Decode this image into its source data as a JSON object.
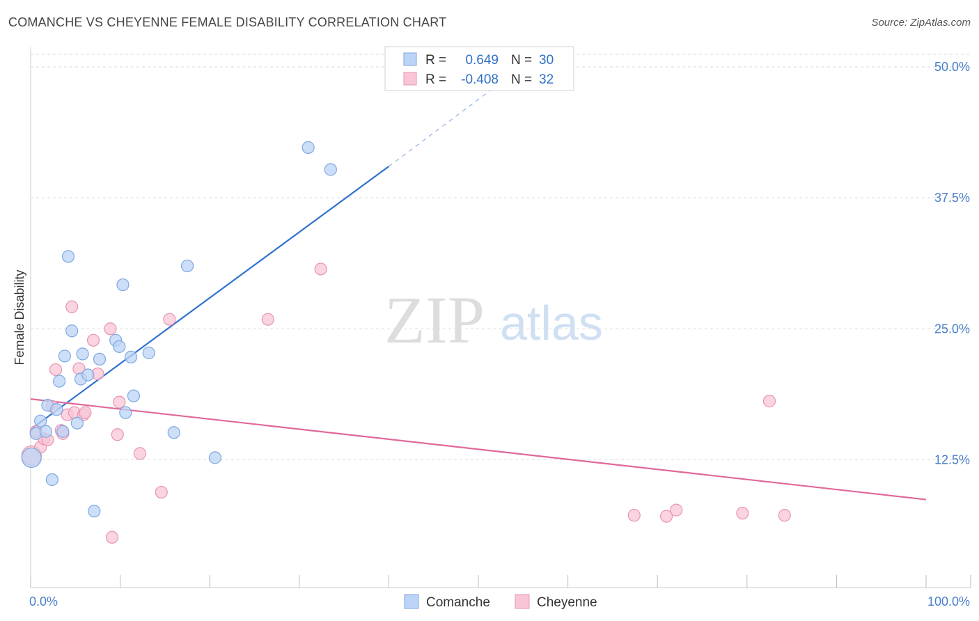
{
  "header": {
    "title": "COMANCHE VS CHEYENNE FEMALE DISABILITY CORRELATION CHART",
    "source": "Source: ZipAtlas.com"
  },
  "watermark": {
    "zip": "ZIP",
    "atlas": "atlas"
  },
  "colors": {
    "comanche_fill": "#bcd4f5",
    "comanche_stroke": "#7ea7e0",
    "comanche_line": "#2f72cf",
    "cheyenne_fill": "#f8c6d6",
    "cheyenne_stroke": "#e894b2",
    "cheyenne_line": "#e06899",
    "text_blue": "#2f6fc8",
    "grid": "#d9d9d9"
  },
  "legend_box": {
    "rows": [
      {
        "r_label": "R =",
        "r_value": "0.649",
        "n_label": "N =",
        "n_value": "30"
      },
      {
        "r_label": "R =",
        "r_value": "-0.408",
        "n_label": "N =",
        "n_value": "32"
      }
    ]
  },
  "chart_data": {
    "type": "scatter",
    "title": "COMANCHE VS CHEYENNE FEMALE DISABILITY CORRELATION CHART",
    "xlabel": "",
    "ylabel": "Female Disability",
    "xlim": [
      0,
      100
    ],
    "ylim": [
      0,
      52
    ],
    "x_tick_labels": [
      {
        "value": 0,
        "label": "0.0%"
      },
      {
        "value": 100,
        "label": "100.0%"
      }
    ],
    "y_ticks": [
      {
        "value": 12.5,
        "label": "12.5%"
      },
      {
        "value": 25.0,
        "label": "25.0%"
      },
      {
        "value": 37.5,
        "label": "37.5%"
      },
      {
        "value": 50.0,
        "label": "50.0%"
      }
    ],
    "x_minor_ticks": [
      0,
      10,
      20,
      30,
      40,
      50,
      60,
      70,
      80,
      90,
      100
    ],
    "legend_position": "bottom-center",
    "series": [
      {
        "name": "Comanche",
        "R": 0.649,
        "N": 30,
        "trend": {
          "x0": 0,
          "y0": 15.4,
          "x1": 40,
          "y1": 40.5,
          "dashed_to_x": 53,
          "dashed_to_y": 48.8
        },
        "points": [
          {
            "x": 0.1,
            "y": 12.7,
            "size": "large"
          },
          {
            "x": 0.6,
            "y": 15.0
          },
          {
            "x": 1.1,
            "y": 16.2
          },
          {
            "x": 1.7,
            "y": 15.2
          },
          {
            "x": 1.9,
            "y": 17.7
          },
          {
            "x": 2.4,
            "y": 10.6
          },
          {
            "x": 2.9,
            "y": 17.3
          },
          {
            "x": 3.2,
            "y": 20.0
          },
          {
            "x": 3.6,
            "y": 15.2
          },
          {
            "x": 3.8,
            "y": 22.4
          },
          {
            "x": 4.2,
            "y": 31.9
          },
          {
            "x": 4.6,
            "y": 24.8
          },
          {
            "x": 5.2,
            "y": 16.0
          },
          {
            "x": 5.6,
            "y": 20.2
          },
          {
            "x": 5.8,
            "y": 22.6
          },
          {
            "x": 6.4,
            "y": 20.6
          },
          {
            "x": 7.1,
            "y": 7.6
          },
          {
            "x": 7.7,
            "y": 22.1
          },
          {
            "x": 9.5,
            "y": 23.9
          },
          {
            "x": 9.9,
            "y": 23.3
          },
          {
            "x": 10.3,
            "y": 29.2
          },
          {
            "x": 10.6,
            "y": 17.0
          },
          {
            "x": 11.2,
            "y": 22.3
          },
          {
            "x": 11.5,
            "y": 18.6
          },
          {
            "x": 13.2,
            "y": 22.7
          },
          {
            "x": 16.0,
            "y": 15.1
          },
          {
            "x": 17.5,
            "y": 31.0
          },
          {
            "x": 20.6,
            "y": 12.7
          },
          {
            "x": 31.0,
            "y": 42.3
          },
          {
            "x": 33.5,
            "y": 40.2
          }
        ]
      },
      {
        "name": "Cheyenne",
        "R": -0.408,
        "N": 32,
        "trend": {
          "x0": 0,
          "y0": 18.3,
          "x1": 100,
          "y1": 8.7
        },
        "points": [
          {
            "x": 0.1,
            "y": 12.9,
            "size": "large"
          },
          {
            "x": 0.6,
            "y": 15.2
          },
          {
            "x": 1.1,
            "y": 13.7
          },
          {
            "x": 1.5,
            "y": 14.5
          },
          {
            "x": 1.9,
            "y": 14.4
          },
          {
            "x": 2.4,
            "y": 17.6
          },
          {
            "x": 2.8,
            "y": 21.1
          },
          {
            "x": 3.4,
            "y": 15.3
          },
          {
            "x": 3.6,
            "y": 15.0
          },
          {
            "x": 4.1,
            "y": 16.8
          },
          {
            "x": 4.6,
            "y": 27.1
          },
          {
            "x": 4.9,
            "y": 17.0
          },
          {
            "x": 5.4,
            "y": 21.2
          },
          {
            "x": 5.9,
            "y": 16.8
          },
          {
            "x": 6.1,
            "y": 17.0
          },
          {
            "x": 7.0,
            "y": 23.9
          },
          {
            "x": 7.5,
            "y": 20.7
          },
          {
            "x": 8.9,
            "y": 25.0
          },
          {
            "x": 9.1,
            "y": 5.1
          },
          {
            "x": 9.7,
            "y": 14.9
          },
          {
            "x": 9.9,
            "y": 18.0
          },
          {
            "x": 12.2,
            "y": 13.1
          },
          {
            "x": 14.6,
            "y": 9.4
          },
          {
            "x": 15.5,
            "y": 25.9
          },
          {
            "x": 26.5,
            "y": 25.9
          },
          {
            "x": 32.4,
            "y": 30.7
          },
          {
            "x": 67.4,
            "y": 7.2
          },
          {
            "x": 71.0,
            "y": 7.1
          },
          {
            "x": 72.1,
            "y": 7.7
          },
          {
            "x": 79.5,
            "y": 7.4
          },
          {
            "x": 82.5,
            "y": 18.1
          },
          {
            "x": 84.2,
            "y": 7.2
          }
        ]
      }
    ]
  }
}
